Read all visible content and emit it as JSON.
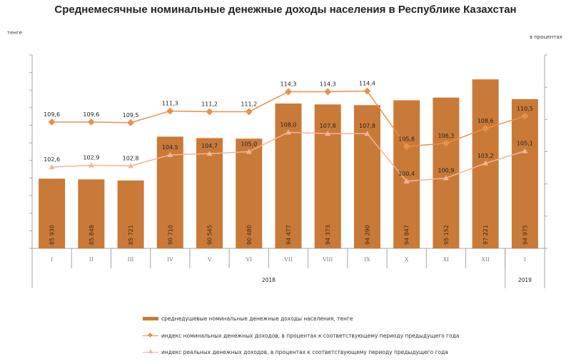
{
  "chart_data": {
    "type": "bar",
    "title": "Среднемесячные номинальные денежные доходы населения в Республике Казахстан",
    "ylabel": "тенге",
    "y2label": "в процентах",
    "categories": [
      "I",
      "II",
      "III",
      "IV",
      "V",
      "VI",
      "VII",
      "VIII",
      "IX",
      "X",
      "XI",
      "XII",
      "I"
    ],
    "years": [
      {
        "label": "2018",
        "span": 12
      },
      {
        "label": "2019",
        "span": 1
      }
    ],
    "ylim": [
      78000,
      100000
    ],
    "y2lim": [
      90,
      120
    ],
    "grid": false,
    "legend_position": "bottom",
    "series": [
      {
        "name": "среднедушевые номинальные денежные доходы населения, тенге",
        "type": "bar",
        "axis": "left",
        "color": "#C97A38",
        "values": [
          85930,
          85848,
          85721,
          90710,
          90545,
          90480,
          94477,
          94373,
          94290,
          94847,
          95152,
          97221,
          94975
        ],
        "labels": [
          "85 930",
          "85 848",
          "85 721",
          "90 710",
          "90 545",
          "90 480",
          "94 477",
          "94 373",
          "94 290",
          "94 847",
          "95 152",
          "97 221",
          "94 975"
        ]
      },
      {
        "name": "индекс номинальных денежных доходов, в процентах к соответствующему периоду предыдущего года",
        "type": "line",
        "marker": "diamond",
        "axis": "right",
        "color": "#E8914A",
        "values": [
          109.6,
          109.6,
          109.5,
          111.3,
          111.2,
          111.2,
          114.3,
          114.3,
          114.4,
          105.8,
          106.3,
          108.6,
          110.5
        ],
        "labels": [
          "109,6",
          "109,6",
          "109,5",
          "111,3",
          "111,2",
          "111,2",
          "114,3",
          "114,3",
          "114,4",
          "105,8",
          "106,3",
          "108,6",
          "110,5"
        ]
      },
      {
        "name": "индекс реальных денежных доходов, в процентах к соответствующему периоду предыдущего года",
        "type": "line",
        "marker": "triangle",
        "axis": "right",
        "color": "#F2B596",
        "values": [
          102.6,
          102.9,
          102.8,
          104.5,
          104.7,
          105.0,
          108.0,
          107.8,
          107.8,
          100.4,
          100.9,
          103.2,
          105.1
        ],
        "labels": [
          "102,6",
          "102,9",
          "102,8",
          "104,5",
          "104,7",
          "105,0",
          "108,0",
          "107,8",
          "107,8",
          "100,4",
          "100,9",
          "103,2",
          "105,1"
        ]
      }
    ]
  }
}
